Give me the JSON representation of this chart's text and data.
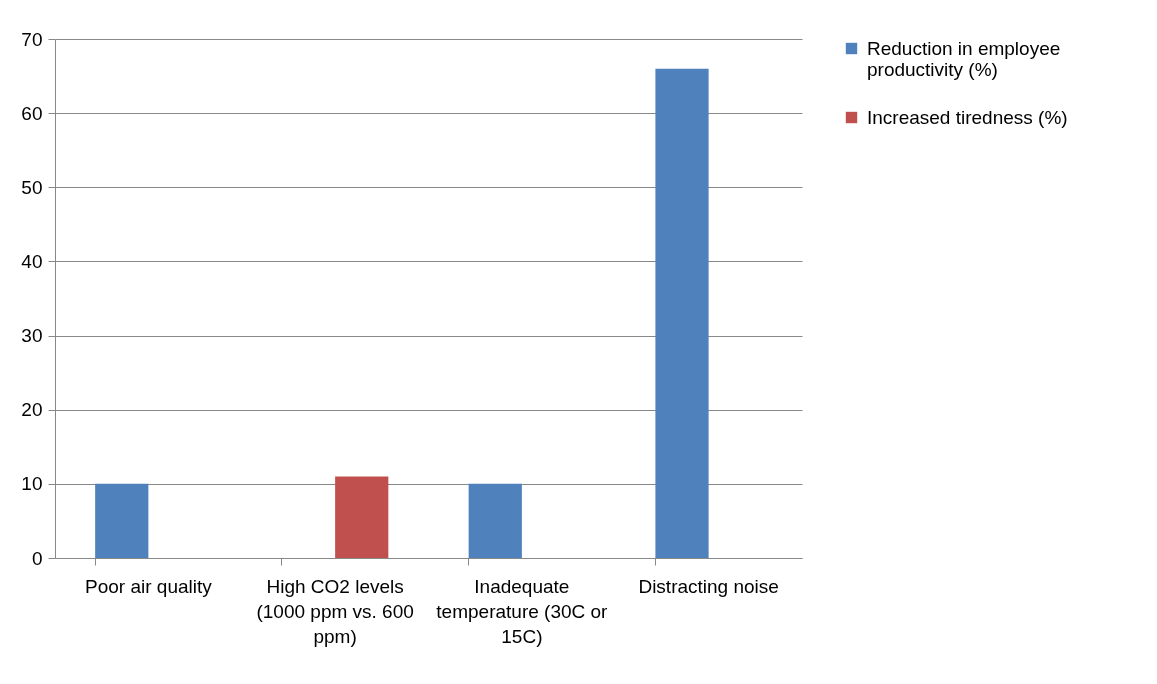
{
  "chart_data": {
    "type": "bar",
    "categories": [
      "Poor air quality",
      "High CO2 levels (1000 ppm vs. 600 ppm)",
      "Inadequate temperature (30C or 15C)",
      "Distracting noise"
    ],
    "series": [
      {
        "name": "Reduction in employee productivity (%)",
        "color": "#4f81bd",
        "values": [
          10,
          null,
          10,
          66
        ]
      },
      {
        "name": "Increased tiredness (%)",
        "color": "#c0504d",
        "values": [
          null,
          11,
          null,
          null
        ]
      }
    ],
    "ylim": [
      0,
      70
    ],
    "yticks": [
      0,
      10,
      20,
      30,
      40,
      50,
      60,
      70
    ],
    "grid": "y",
    "legend": "right"
  }
}
